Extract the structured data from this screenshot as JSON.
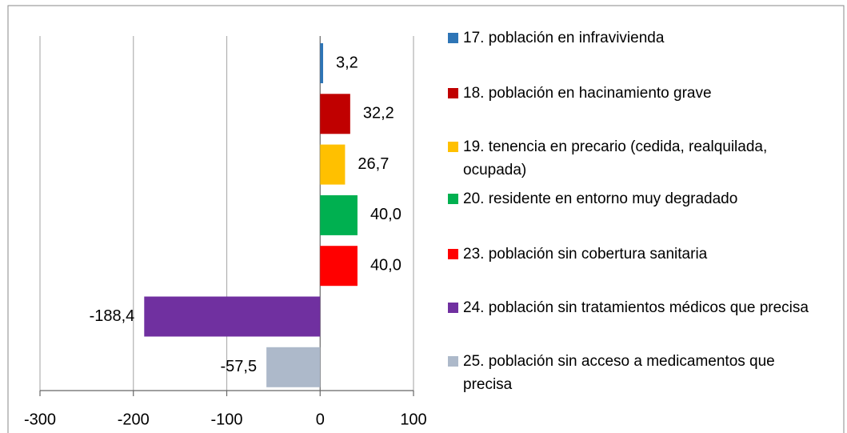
{
  "chart_data": {
    "type": "barh",
    "series": [
      {
        "name": "17. población en infravivienda",
        "color": "#2e75b6",
        "values": [
          3.2
        ],
        "value_labels": [
          "3,2"
        ]
      },
      {
        "name": "18. población en hacinamiento grave",
        "color": "#c00000",
        "values": [
          32.2
        ],
        "value_labels": [
          "32,2"
        ]
      },
      {
        "name": "19. tenencia en precario (cedida, realquilada, ocupada)",
        "color": "#ffc000",
        "values": [
          26.7
        ],
        "value_labels": [
          "26,7"
        ]
      },
      {
        "name": "20. residente en entorno muy degradado",
        "color": "#00b050",
        "values": [
          40.0
        ],
        "value_labels": [
          "40,0"
        ]
      },
      {
        "name": "23. población sin cobertura sanitaria",
        "color": "#ff0000",
        "values": [
          40.0
        ],
        "value_labels": [
          "40,0"
        ]
      },
      {
        "name": "24. población sin tratamientos médicos que precisa",
        "color": "#7030a0",
        "values": [
          -188.4
        ],
        "value_labels": [
          "-188,4"
        ]
      },
      {
        "name": "25. población sin acceso a medicamentos que precisa",
        "color": "#adb9ca",
        "values": [
          -57.5
        ],
        "value_labels": [
          "-57,5"
        ]
      }
    ],
    "xlim": [
      -300,
      100
    ],
    "xticks": [
      -300,
      -200,
      -100,
      0,
      100
    ],
    "grid": true,
    "legend": "right"
  }
}
